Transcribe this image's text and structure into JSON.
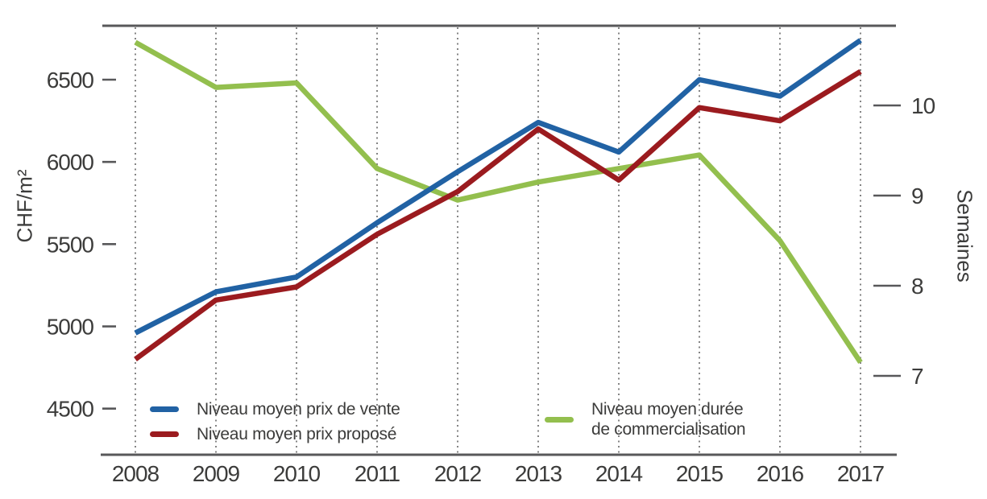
{
  "chart_data": {
    "type": "line",
    "title": "",
    "categories": [
      "2008",
      "2009",
      "2010",
      "2011",
      "2012",
      "2013",
      "2014",
      "2015",
      "2016",
      "2017"
    ],
    "left_axis": {
      "label": "CHF/m²",
      "ticks": [
        6500,
        6000,
        5500,
        5000,
        4500
      ],
      "range": [
        4250,
        6830
      ]
    },
    "right_axis": {
      "label": "Semaines",
      "ticks": [
        10,
        9,
        8,
        7
      ],
      "range": [
        6.1,
        10.9
      ]
    },
    "grid": "vertical-dotted",
    "legend_position": "bottom-inside",
    "series": [
      {
        "name": "Niveau moyen prix de vente",
        "axis": "left",
        "color": "#2162a4",
        "values": [
          4960,
          5210,
          5300,
          5630,
          5940,
          6240,
          6060,
          6500,
          6400,
          6740
        ]
      },
      {
        "name": "Niveau moyen prix proposé",
        "axis": "left",
        "color": "#9b1b1f",
        "values": [
          4800,
          5160,
          5240,
          5560,
          5820,
          6200,
          5890,
          6330,
          6250,
          6550
        ]
      },
      {
        "name": "Niveau moyen durée de commercialisation",
        "axis": "right",
        "color": "#93bf4e",
        "values": [
          10.7,
          10.2,
          10.25,
          9.3,
          8.95,
          9.15,
          9.3,
          9.45,
          8.5,
          7.15
        ]
      }
    ]
  },
  "legend": {
    "items": [
      {
        "label": "Niveau moyen prix de vente",
        "color": "#2162a4"
      },
      {
        "label": "Niveau moyen prix proposé",
        "color": "#9b1b1f"
      },
      {
        "label_line1": "Niveau moyen durée",
        "label_line2": "de commercialisation",
        "color": "#93bf4e"
      }
    ]
  },
  "colors": {
    "axis": "#58585a",
    "grid_dots": "#777777",
    "text": "#3c3c3b"
  }
}
